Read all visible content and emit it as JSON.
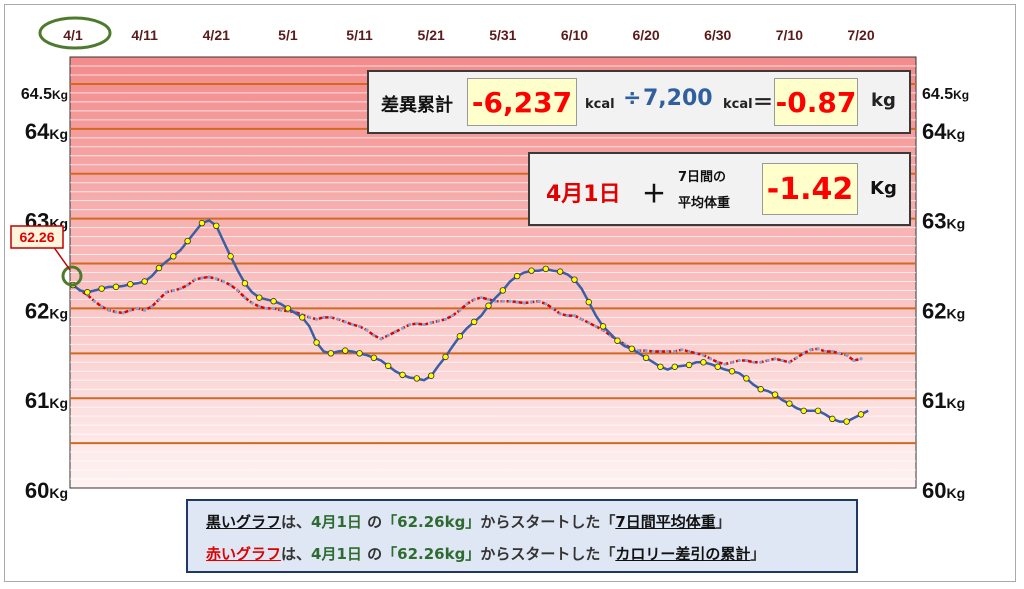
{
  "chart_data": {
    "type": "line",
    "x_ticks": [
      "4/1",
      "4/11",
      "4/21",
      "5/1",
      "5/11",
      "5/21",
      "5/31",
      "6/10",
      "6/20",
      "6/30",
      "7/10",
      "7/20"
    ],
    "y_ticks_left": [
      {
        "value": 64.5,
        "label": "64.5Kg"
      },
      {
        "value": 64,
        "label": "64Kg"
      },
      {
        "value": 63,
        "label": "63Kg"
      },
      {
        "value": 62,
        "label": "62Kg"
      },
      {
        "value": 61,
        "label": "61Kg"
      },
      {
        "value": 60,
        "label": "60Kg"
      }
    ],
    "y_ticks_right": [
      {
        "value": 64.5,
        "label": "64.5Kg"
      },
      {
        "value": 64,
        "label": "64Kg"
      },
      {
        "value": 63,
        "label": "63Kg"
      },
      {
        "value": 62,
        "label": "62Kg"
      },
      {
        "value": 61,
        "label": "61Kg"
      },
      {
        "value": 60,
        "label": "60Kg"
      }
    ],
    "ylim": [
      60,
      64.8
    ],
    "xlim_days": [
      0,
      110
    ],
    "start_label": "62.26",
    "series": [
      {
        "color": "#3a5fa5",
        "marker_color": "#ffff00",
        "values": [
          62.26,
          62.2,
          62.18,
          62.2,
          62.22,
          62.24,
          62.24,
          62.25,
          62.27,
          62.28,
          62.3,
          62.36,
          62.45,
          62.52,
          62.58,
          62.65,
          62.75,
          62.85,
          62.95,
          62.98,
          62.92,
          62.75,
          62.58,
          62.42,
          62.28,
          62.18,
          62.12,
          62.1,
          62.08,
          62.05,
          62.0,
          61.95,
          61.9,
          61.8,
          61.62,
          61.52,
          61.5,
          61.52,
          61.53,
          61.52,
          61.5,
          61.48,
          61.45,
          61.42,
          61.36,
          61.3,
          61.26,
          61.23,
          61.22,
          61.2,
          61.25,
          61.36,
          61.46,
          61.58,
          61.69,
          61.78,
          61.85,
          61.92,
          62.03,
          62.12,
          62.2,
          62.3,
          62.36,
          62.4,
          62.42,
          62.42,
          62.44,
          62.42,
          62.41,
          62.38,
          62.32,
          62.22,
          62.07,
          61.92,
          61.8,
          61.72,
          61.64,
          61.58,
          61.55,
          61.5,
          61.45,
          61.4,
          61.35,
          61.32,
          61.35,
          61.36,
          61.37,
          61.4,
          61.4,
          61.38,
          61.35,
          61.32,
          61.3,
          61.28,
          61.22,
          61.15,
          61.1,
          61.08,
          61.04,
          60.98,
          60.94,
          60.89,
          60.86,
          60.86,
          60.86,
          60.82,
          60.77,
          60.74,
          60.74,
          60.78,
          60.82,
          60.86
        ]
      },
      {
        "color": "#e00000",
        "marker_color": "#7fa8d8",
        "values": [
          62.26,
          62.2,
          62.15,
          62.08,
          62.02,
          61.98,
          61.96,
          61.95,
          61.98,
          62.0,
          61.98,
          62.02,
          62.1,
          62.18,
          62.2,
          62.22,
          62.26,
          62.32,
          62.34,
          62.35,
          62.33,
          62.3,
          62.26,
          62.2,
          62.12,
          62.06,
          62.02,
          62.0,
          62.0,
          61.98,
          61.97,
          61.96,
          61.93,
          61.9,
          61.88,
          61.9,
          61.9,
          61.88,
          61.85,
          61.82,
          61.8,
          61.76,
          61.7,
          61.66,
          61.7,
          61.74,
          61.78,
          61.82,
          61.83,
          61.82,
          61.84,
          61.86,
          61.88,
          61.92,
          61.98,
          62.05,
          62.1,
          62.12,
          62.1,
          62.08,
          62.08,
          62.08,
          62.07,
          62.06,
          62.07,
          62.08,
          62.05,
          62.0,
          61.94,
          61.92,
          61.92,
          61.88,
          61.84,
          61.8,
          61.76,
          61.7,
          61.65,
          61.6,
          61.55,
          61.53,
          61.53,
          61.52,
          61.52,
          61.52,
          61.52,
          61.54,
          61.52,
          61.5,
          61.48,
          61.44,
          61.4,
          61.38,
          61.4,
          61.42,
          61.42,
          61.4,
          61.4,
          61.42,
          61.44,
          61.42,
          61.4,
          61.45,
          61.5,
          61.54,
          61.55,
          61.52,
          61.52,
          61.5,
          61.48,
          61.42,
          61.44
        ]
      }
    ]
  },
  "summary": {
    "diff_label": "差異累計",
    "diff_value": "-6,237",
    "kcal1": "kcal",
    "divide": "÷",
    "divisor": "7,200",
    "kcal2": "kcal",
    "equals": "＝",
    "result_value": "-0.87",
    "result_unit": "kg"
  },
  "average": {
    "start_date": "4月1日",
    "plus": "＋",
    "label_line1": "7日間の",
    "label_line2": "平均体重",
    "value": "-1.42",
    "unit": "Kg"
  },
  "legend": {
    "row1": {
      "graph": "黒いグラフ",
      "wa": "は、",
      "date": "4月1日",
      "no": " の",
      "quote": "「62.26kg」",
      "rest": "からスタートした",
      "lb": "「",
      "what": "7日間平均体重",
      "rb": "」"
    },
    "row2": {
      "graph": "赤いグラフ",
      "wa": "は、",
      "date": "4月1日",
      "no": " の",
      "quote": "「62.26kg」",
      "rest": "からスタートした",
      "lb": "「",
      "what": "カロリー差引の累計",
      "rb": "」"
    }
  },
  "colors": {
    "plot_top": "#f28a8a",
    "plot_bottom": "#fff0f0",
    "gridline_major": "#d06a20",
    "circle": "#4e7a2e",
    "tick_label": "#5a1a1a"
  }
}
